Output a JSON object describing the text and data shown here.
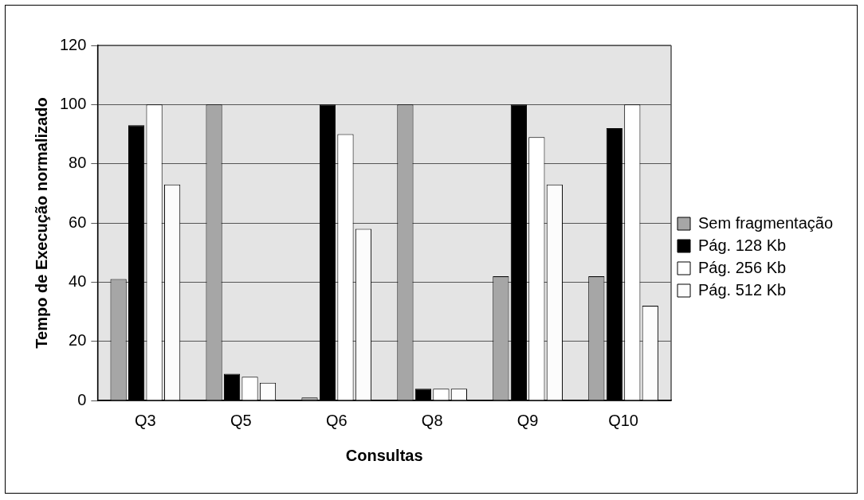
{
  "chart_data": {
    "type": "bar",
    "xlabel": "Consultas",
    "ylabel": "Tempo de Execução normalizado",
    "categories": [
      "Q3",
      "Q5",
      "Q6",
      "Q8",
      "Q9",
      "Q10"
    ],
    "series": [
      {
        "name": "Sem fragmentação",
        "color": "#a6a6a6",
        "values": [
          41,
          100,
          1,
          100,
          42,
          42
        ]
      },
      {
        "name": "Pág. 128 Kb",
        "color": "#000000",
        "values": [
          93,
          9,
          100,
          4,
          100,
          92
        ]
      },
      {
        "name": "Pág. 256 Kb",
        "color": "#ffffff",
        "values": [
          100,
          8,
          90,
          4,
          89,
          100
        ]
      },
      {
        "name": "Pág. 512 Kb",
        "color": "#fcfcfc",
        "values": [
          73,
          6,
          58,
          4,
          73,
          32
        ]
      }
    ],
    "ylim": [
      0,
      120
    ],
    "yticks": [
      0,
      20,
      40,
      60,
      80,
      100,
      120
    ],
    "grid": "y",
    "legend": "right"
  }
}
